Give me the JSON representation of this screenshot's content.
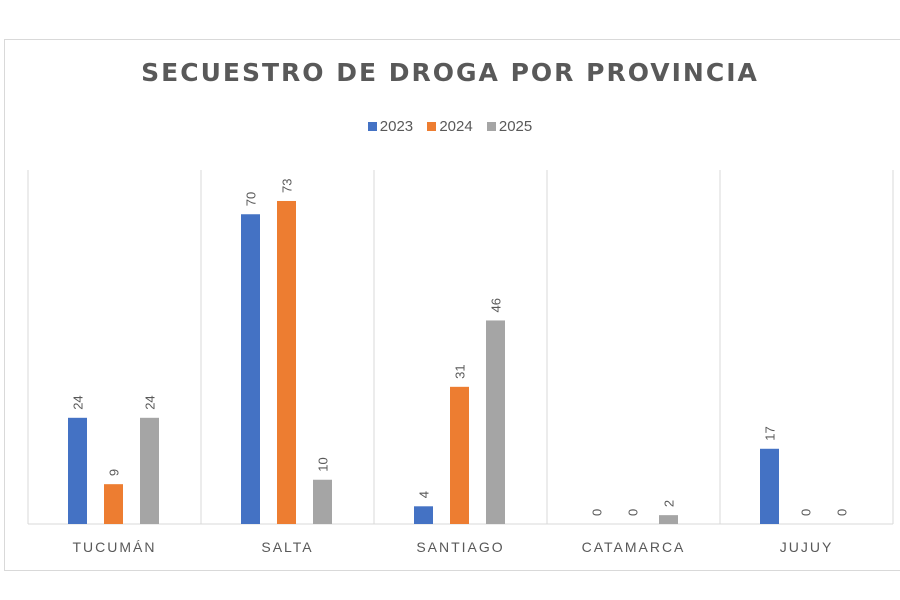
{
  "chart_data": {
    "type": "bar",
    "title": "SECUESTRO DE DROGA POR PROVINCIA",
    "categories": [
      "TUCUMÁN",
      "SALTA",
      "SANTIAGO",
      "CATAMARCA",
      "JUJUY"
    ],
    "series": [
      {
        "name": "2023",
        "color": "#4472c4",
        "values": [
          24,
          70,
          4,
          0,
          17
        ]
      },
      {
        "name": "2024",
        "color": "#ed7d31",
        "values": [
          9,
          73,
          31,
          0,
          0
        ]
      },
      {
        "name": "2025",
        "color": "#a5a5a5",
        "values": [
          24,
          10,
          46,
          2,
          0
        ]
      }
    ],
    "ylim": [
      0,
      80
    ],
    "grid": false,
    "legend": "top",
    "data_labels": true
  }
}
